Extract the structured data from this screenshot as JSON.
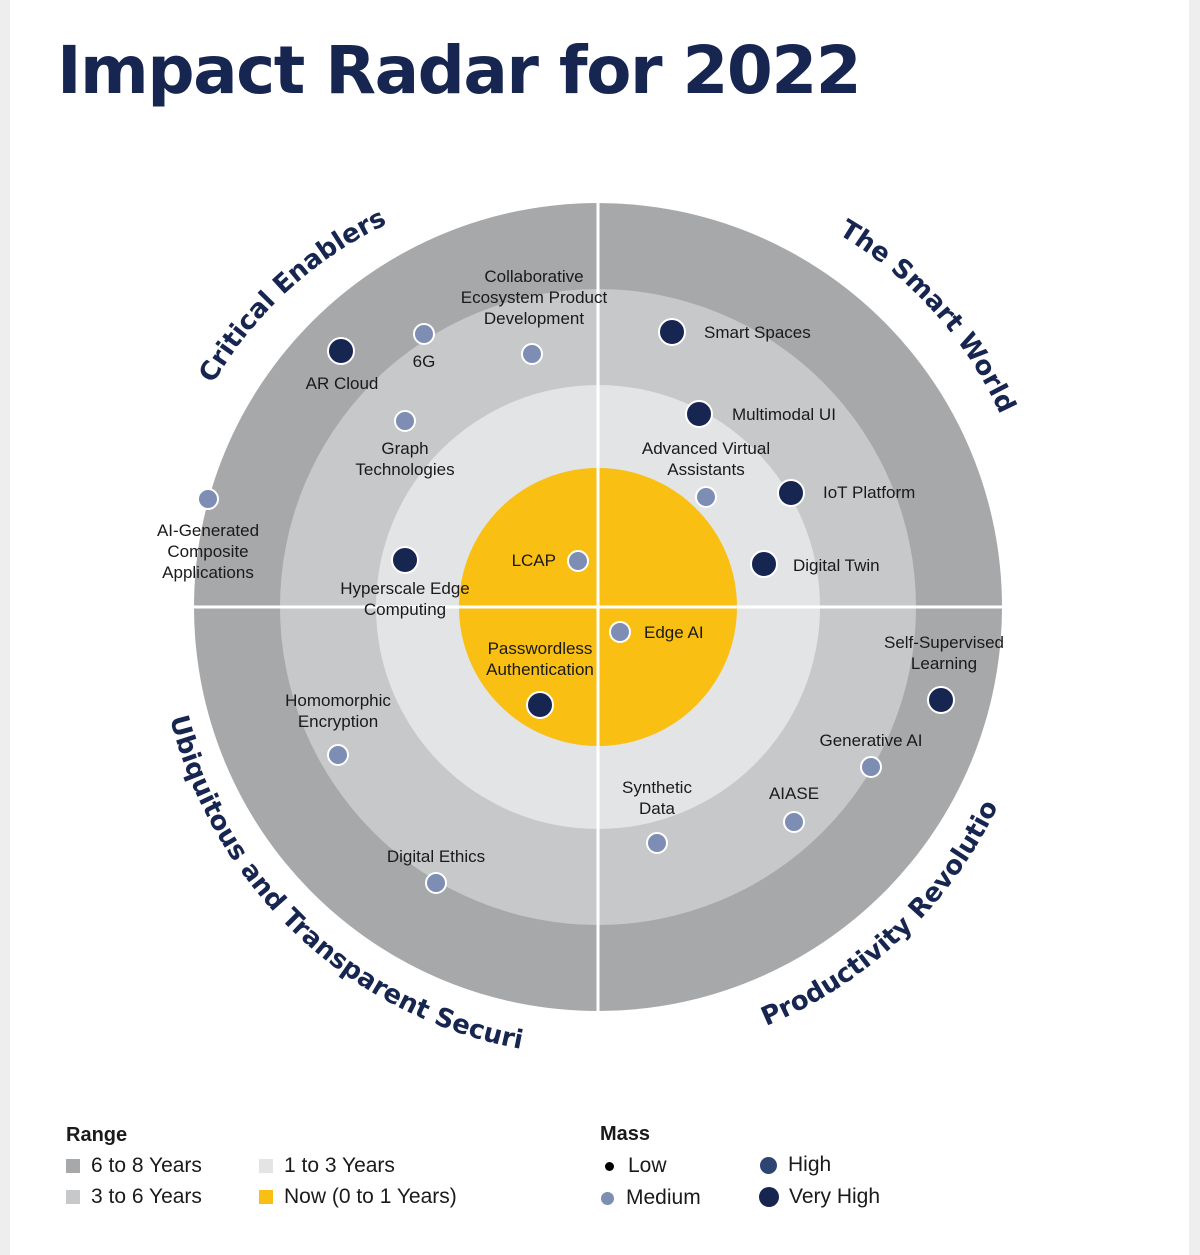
{
  "title": "Impact Radar for 2022",
  "colors": {
    "ring_6_8": "#a7a8aa",
    "ring_3_6": "#c7c8ca",
    "ring_1_3": "#e3e4e6",
    "ring_now": "#f9bf13",
    "title": "#172551",
    "very_high": "#172551",
    "high": "#2e4574",
    "medium": "#7d8db3",
    "low": "#000000"
  },
  "themes": {
    "critical_enablers": "Critical Enablers",
    "smart_world": "The Smart World",
    "security": "Ubiquitous and Transparent Security",
    "productivity": "Productivity Revolution"
  },
  "technologies": [
    {
      "name": "Collaborative Ecosystem Product Development",
      "lines": [
        "Collaborative",
        "Ecosystem Product",
        "Development"
      ],
      "theme": "Critical Enablers",
      "range": "3 to 6 Years",
      "mass": "Medium"
    },
    {
      "name": "6G",
      "lines": [
        "6G"
      ],
      "theme": "Critical Enablers",
      "range": "6 to 8 Years",
      "mass": "Medium"
    },
    {
      "name": "AR Cloud",
      "lines": [
        "AR Cloud"
      ],
      "theme": "Critical Enablers",
      "range": "6 to 8 Years",
      "mass": "Very High"
    },
    {
      "name": "Graph Technologies",
      "lines": [
        "Graph",
        "Technologies"
      ],
      "theme": "Critical Enablers",
      "range": "3 to 6 Years",
      "mass": "Medium"
    },
    {
      "name": "AI-Generated Composite Applications",
      "lines": [
        "AI-Generated",
        "Composite",
        "Applications"
      ],
      "theme": "Critical Enablers",
      "range": "6 to 8 Years",
      "mass": "Medium"
    },
    {
      "name": "Hyperscale Edge Computing",
      "lines": [
        "Hyperscale Edge",
        "Computing"
      ],
      "theme": "Critical Enablers",
      "range": "1 to 3 Years",
      "mass": "Very High"
    },
    {
      "name": "LCAP",
      "lines": [
        "LCAP"
      ],
      "theme": "Critical Enablers",
      "range": "Now (0 to 1 Years)",
      "mass": "Medium"
    },
    {
      "name": "Smart Spaces",
      "lines": [
        "Smart Spaces"
      ],
      "theme": "The Smart World",
      "range": "3 to 6 Years",
      "mass": "Very High"
    },
    {
      "name": "Multimodal UI",
      "lines": [
        "Multimodal UI"
      ],
      "theme": "The Smart World",
      "range": "3 to 6 Years",
      "mass": "Very High"
    },
    {
      "name": "Advanced Virtual Assistants",
      "lines": [
        "Advanced Virtual",
        "Assistants"
      ],
      "theme": "The Smart World",
      "range": "1 to 3 Years",
      "mass": "Medium"
    },
    {
      "name": "IoT Platform",
      "lines": [
        "IoT Platform"
      ],
      "theme": "The Smart World",
      "range": "1 to 3 Years",
      "mass": "Very High"
    },
    {
      "name": "Digital Twin",
      "lines": [
        "Digital Twin"
      ],
      "theme": "The Smart World",
      "range": "1 to 3 Years",
      "mass": "Very High"
    },
    {
      "name": "Edge AI",
      "lines": [
        "Edge AI"
      ],
      "theme": "Productivity Revolution",
      "range": "Now (0 to 1 Years)",
      "mass": "Medium"
    },
    {
      "name": "Self-Supervised Learning",
      "lines": [
        "Self-Supervised",
        "Learning"
      ],
      "theme": "Productivity Revolution",
      "range": "6 to 8 Years",
      "mass": "Very High"
    },
    {
      "name": "Generative AI",
      "lines": [
        "Generative AI"
      ],
      "theme": "Productivity Revolution",
      "range": "3 to 6 Years",
      "mass": "Medium"
    },
    {
      "name": "AIASE",
      "lines": [
        "AIASE"
      ],
      "theme": "Productivity Revolution",
      "range": "3 to 6 Years",
      "mass": "Medium"
    },
    {
      "name": "Synthetic Data",
      "lines": [
        "Synthetic",
        "Data"
      ],
      "theme": "Productivity Revolution",
      "range": "3 to 6 Years",
      "mass": "Medium"
    },
    {
      "name": "Passwordless Authentication",
      "lines": [
        "Passwordless",
        "Authentication"
      ],
      "theme": "Ubiquitous and Transparent Security",
      "range": "Now (0 to 1 Years)",
      "mass": "Very High"
    },
    {
      "name": "Homomorphic Encryption",
      "lines": [
        "Homomorphic",
        "Encryption"
      ],
      "theme": "Ubiquitous and Transparent Security",
      "range": "3 to 6 Years",
      "mass": "Medium"
    },
    {
      "name": "Digital Ethics",
      "lines": [
        "Digital Ethics"
      ],
      "theme": "Ubiquitous and Transparent Security",
      "range": "3 to 6 Years",
      "mass": "Medium"
    }
  ],
  "legend": {
    "range_title": "Range",
    "range_items": [
      "6 to 8 Years",
      "3 to 6 Years",
      "1 to 3 Years",
      "Now (0 to 1 Years)"
    ],
    "mass_title": "Mass",
    "mass_items": [
      "Low",
      "Medium",
      "High",
      "Very High"
    ]
  }
}
